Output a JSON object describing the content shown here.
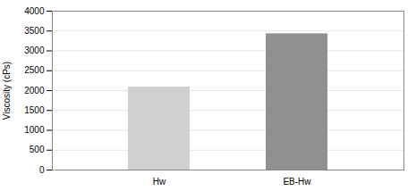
{
  "chart_data": {
    "type": "bar",
    "categories": [
      "Hw",
      "EB-Hw"
    ],
    "values": [
      2090,
      3430
    ],
    "colors": [
      "#d0d0d0",
      "#909090"
    ],
    "ylabel": "Viscosity (cPs)",
    "ylim": [
      0,
      4000
    ],
    "yticks": [
      0,
      500,
      1000,
      1500,
      2000,
      2500,
      3000,
      3500,
      4000
    ],
    "grid": true
  }
}
